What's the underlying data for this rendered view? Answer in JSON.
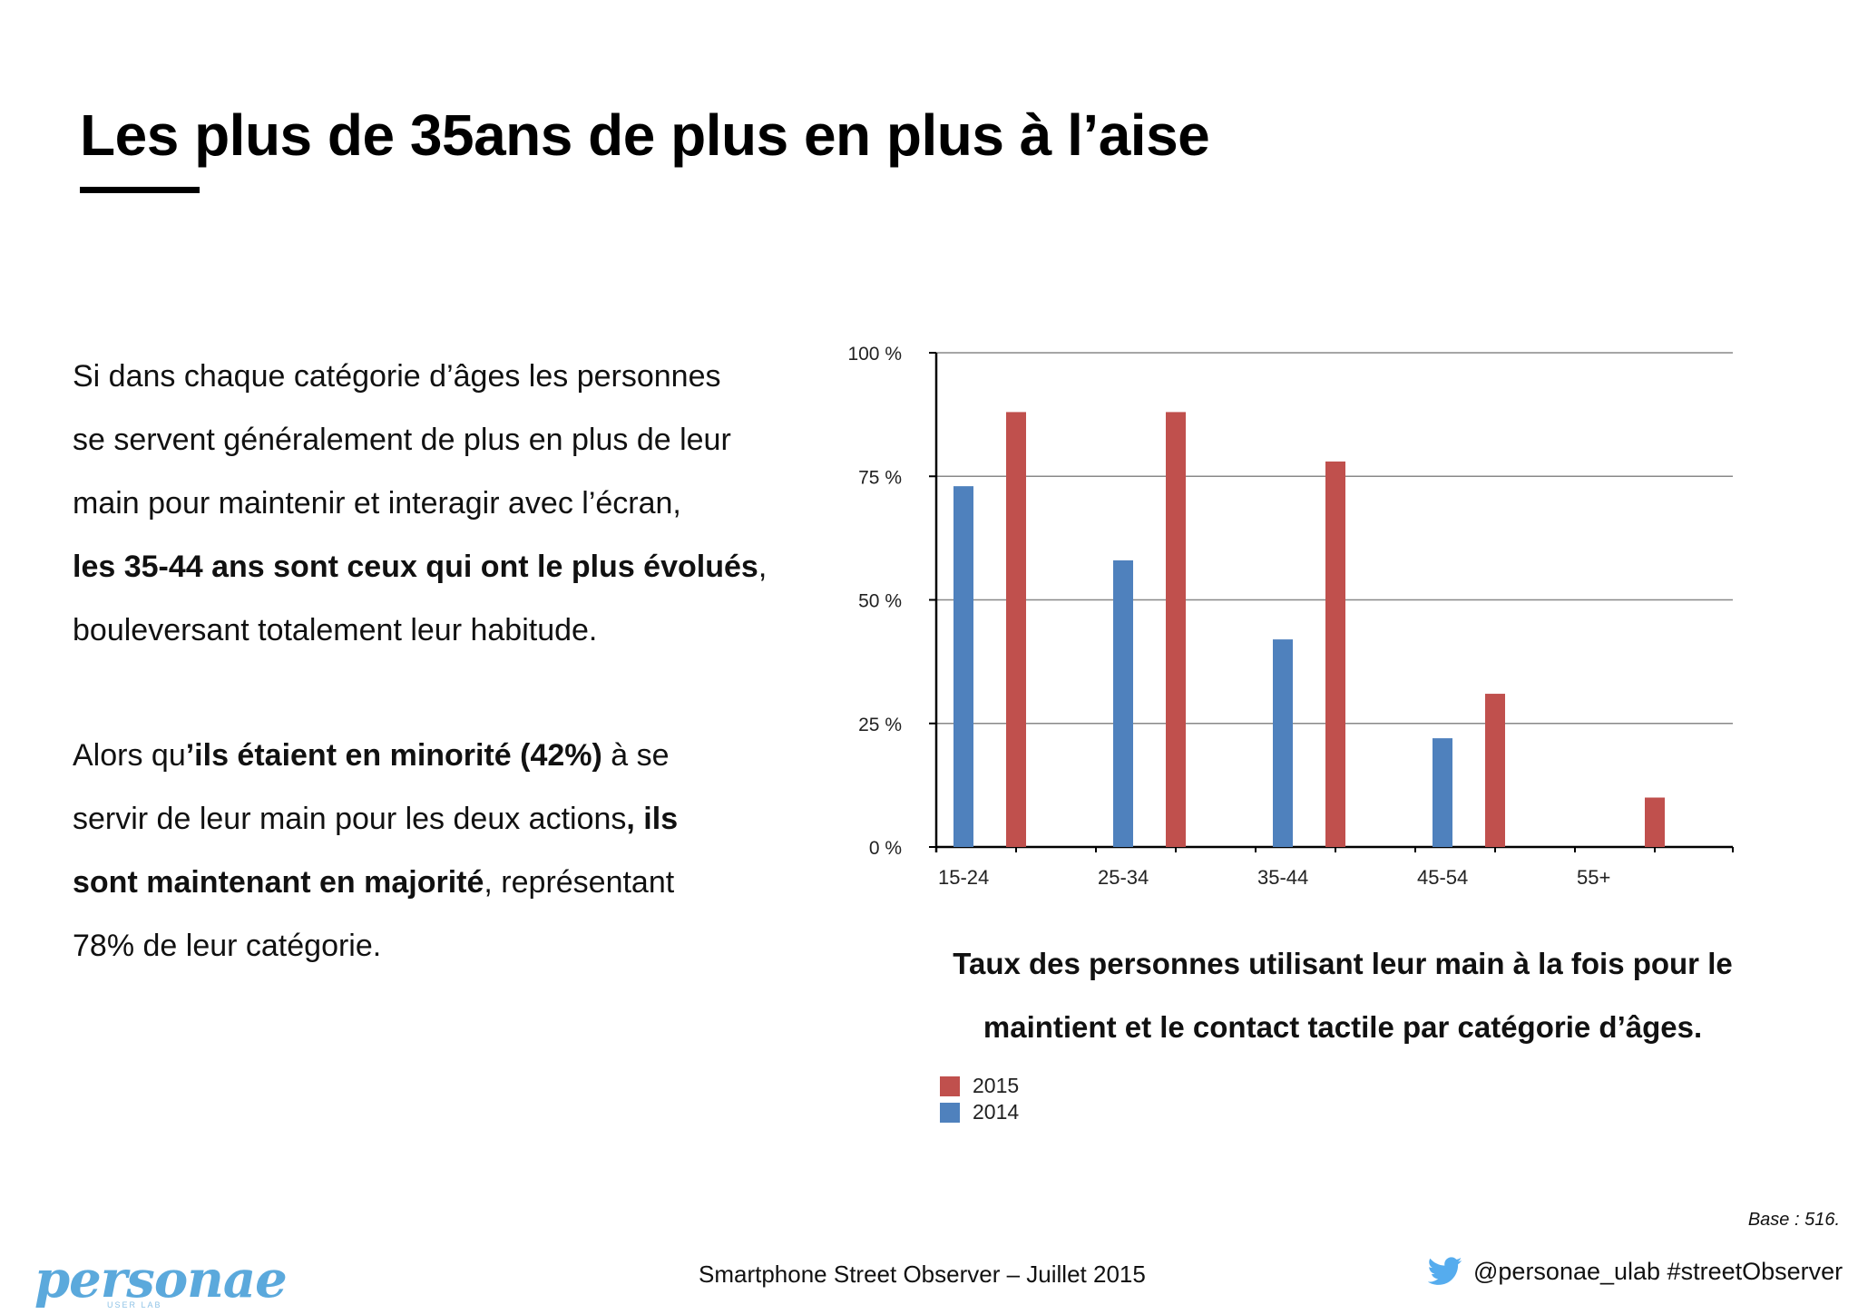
{
  "slide": {
    "title": "Les plus de 35ans de plus en plus à l’aise"
  },
  "body": {
    "p1_line1": "Si dans chaque catégorie d’âges les personnes",
    "p1_line2": "se servent généralement de plus en plus de leur",
    "p1_line3": "main pour maintenir et interagir avec l’écran,",
    "p1_line4_bold": "les 35-44 ans sont ceux qui ont le plus évolués",
    "p1_line4_after": ",",
    "p1_line5": "bouleversant totalement leur habitude.",
    "p2_line1_pre": "Alors qu",
    "p2_line1_bold": "’ils étaient en minorité (42%)",
    "p2_line1_post": " à se",
    "p2_line2_pre": "servir de leur main pour les deux actions",
    "p2_line2_bold": ", ils",
    "p2_line3_bold": "sont maintenant en majorité",
    "p2_line3_post": ", représentant",
    "p2_line4": "78% de leur catégorie."
  },
  "chart_caption": {
    "line1": "Taux des personnes utilisant leur main à la fois pour  le",
    "line2": "maintient et le contact tactile par catégorie d’âges."
  },
  "chart_data": {
    "type": "bar",
    "title": "Taux des personnes utilisant leur main à la fois pour  le maintient et le contact tactile par catégorie d’âges.",
    "categories": [
      "15-24",
      "25-34",
      "35-44",
      "45-54",
      "55+"
    ],
    "series": [
      {
        "name": "2014",
        "color": "#4f81bd",
        "values": [
          73,
          58,
          42,
          22,
          0
        ]
      },
      {
        "name": "2015",
        "color": "#c0504d",
        "values": [
          88,
          88,
          78,
          31,
          10
        ]
      }
    ],
    "ylim": [
      0,
      100
    ],
    "yticks": [
      0,
      25,
      50,
      75,
      100
    ],
    "ytick_labels": [
      "0 %",
      "25 %",
      "50 %",
      "75 %",
      "100 %"
    ],
    "grid": true,
    "legend": {
      "placement": "bottom-left",
      "order": [
        "2015",
        "2014"
      ]
    }
  },
  "footer": {
    "base": "Base : 516.",
    "center": "Smartphone Street Observer – Juillet 2015",
    "social": "@personae_ulab #streetObserver",
    "logo_text": "personae",
    "logo_sub": "USER LAB"
  }
}
